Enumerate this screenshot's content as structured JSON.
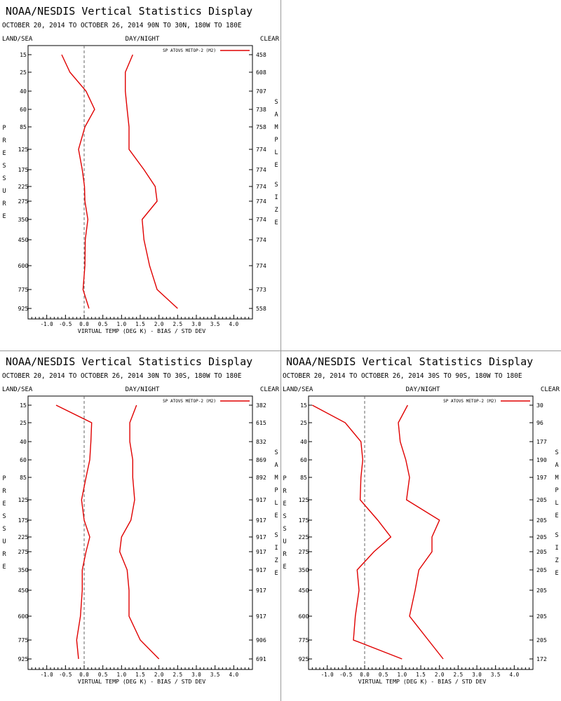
{
  "chart_data": [
    {
      "type": "line",
      "title": "NOAA/NESDIS Vertical Statistics Display",
      "subtitle": "OCTOBER 20, 2014 TO OCTOBER 26, 2014  90N TO 30N, 180W TO 180E",
      "left_label": "LAND/SEA",
      "center_label": "DAY/NIGHT",
      "right_label": "CLEAR",
      "ylabel": "PRESSURE",
      "right_axis_label": "SAMPLE SIZE",
      "xlabel": "VIRTUAL TEMP (DEG K) - BIAS / STD DEV",
      "xlim": [
        -1.5,
        4.5
      ],
      "xticks": [
        "-1.0",
        "-0.5",
        "0.0",
        "0.5",
        "1.0",
        "1.5",
        "2.0",
        "2.5",
        "3.0",
        "3.5",
        "4.0"
      ],
      "legend": "SP ATOVS METOP-2 (M2)",
      "legend_position": "top-right",
      "pressure_levels": [
        "15",
        "25",
        "40",
        "60",
        "85",
        "125",
        "175",
        "225",
        "275",
        "350",
        "450",
        "600",
        "775",
        "925"
      ],
      "sample_size": [
        "458",
        "608",
        "707",
        "738",
        "758",
        "774",
        "774",
        "774",
        "774",
        "774",
        "774",
        "774",
        "773",
        "558"
      ],
      "series": [
        {
          "values": [
            -0.6,
            -0.38,
            0.05,
            0.28,
            0.02,
            -0.15,
            -0.05,
            0.01,
            0.02,
            0.1,
            0.03,
            0.02,
            -0.03,
            0.13
          ]
        },
        {
          "values": [
            1.3,
            1.1,
            1.1,
            1.15,
            1.2,
            1.2,
            1.6,
            1.9,
            1.95,
            1.55,
            1.6,
            1.75,
            1.95,
            2.5
          ]
        }
      ]
    },
    {
      "type": "line",
      "title": "NOAA/NESDIS Vertical Statistics Display",
      "subtitle": "OCTOBER 20, 2014 TO OCTOBER 26, 2014  30N TO 30S, 180W TO 180E",
      "left_label": "LAND/SEA",
      "center_label": "DAY/NIGHT",
      "right_label": "CLEAR",
      "ylabel": "PRESSURE",
      "right_axis_label": "SAMPLE SIZE",
      "xlabel": "VIRTUAL TEMP (DEG K) - BIAS / STD DEV",
      "xlim": [
        -1.5,
        4.5
      ],
      "xticks": [
        "-1.0",
        "-0.5",
        "0.0",
        "0.5",
        "1.0",
        "1.5",
        "2.0",
        "2.5",
        "3.0",
        "3.5",
        "4.0"
      ],
      "legend": "SP ATOVS METOP-2 (M2)",
      "legend_position": "top-right",
      "pressure_levels": [
        "15",
        "25",
        "40",
        "60",
        "85",
        "125",
        "175",
        "225",
        "275",
        "350",
        "450",
        "600",
        "775",
        "925"
      ],
      "sample_size": [
        "382",
        "615",
        "832",
        "869",
        "892",
        "917",
        "917",
        "917",
        "917",
        "917",
        "917",
        "917",
        "906",
        "691"
      ],
      "series": [
        {
          "values": [
            -0.75,
            0.2,
            0.18,
            0.15,
            0.05,
            -0.07,
            0.0,
            0.15,
            0.05,
            -0.05,
            -0.05,
            -0.1,
            -0.2,
            -0.15
          ]
        },
        {
          "values": [
            1.4,
            1.22,
            1.22,
            1.3,
            1.3,
            1.35,
            1.25,
            1.0,
            0.95,
            1.15,
            1.2,
            1.2,
            1.5,
            2.0
          ]
        }
      ]
    },
    {
      "type": "line",
      "title": "NOAA/NESDIS Vertical Statistics Display",
      "subtitle": "OCTOBER 20, 2014 TO OCTOBER 26, 2014  30S TO 90S, 180W TO 180E",
      "left_label": "LAND/SEA",
      "center_label": "DAY/NIGHT",
      "right_label": "CLEAR",
      "ylabel": "PRESSURE",
      "right_axis_label": "SAMPLE SIZE",
      "xlabel": "VIRTUAL TEMP (DEG K) - BIAS / STD DEV",
      "xlim": [
        -1.5,
        4.5
      ],
      "xticks": [
        "-1.0",
        "-0.5",
        "0.0",
        "0.5",
        "1.0",
        "1.5",
        "2.0",
        "2.5",
        "3.0",
        "3.5",
        "4.0"
      ],
      "legend": "SP ATOVS METOP-2 (M2)",
      "legend_position": "top-right",
      "pressure_levels": [
        "15",
        "25",
        "40",
        "60",
        "85",
        "125",
        "175",
        "225",
        "275",
        "350",
        "450",
        "600",
        "775",
        "925"
      ],
      "sample_size": [
        "30",
        "96",
        "177",
        "190",
        "197",
        "205",
        "205",
        "205",
        "205",
        "205",
        "205",
        "205",
        "205",
        "172"
      ],
      "series": [
        {
          "values": [
            -1.4,
            -0.52,
            -0.1,
            -0.05,
            -0.1,
            -0.12,
            0.35,
            0.7,
            0.25,
            -0.2,
            -0.15,
            -0.25,
            -0.3,
            1.0
          ]
        },
        {
          "values": [
            1.15,
            0.9,
            0.95,
            1.1,
            1.2,
            1.12,
            2.0,
            1.8,
            1.8,
            1.45,
            1.35,
            1.2,
            1.7,
            2.1
          ]
        }
      ]
    }
  ],
  "colors": {
    "series": "#e00000",
    "axis": "#000000",
    "zero_line": "#666666",
    "divider": "#9a9a9a"
  }
}
